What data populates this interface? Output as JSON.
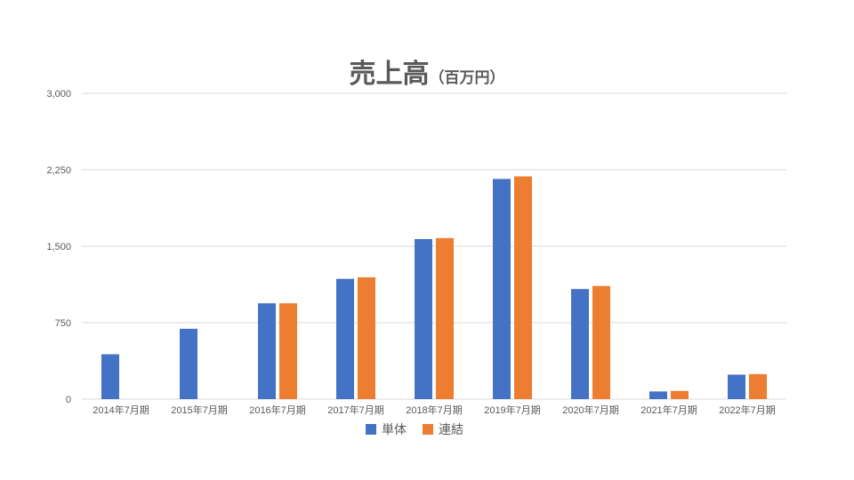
{
  "title": "売上高",
  "title_unit": "（百万円）",
  "colors": {
    "series1": "#4472C4",
    "series2": "#ED7D31",
    "grid": "#D9D9D9",
    "text": "#595959"
  },
  "chart_data": {
    "type": "bar",
    "title": "売上高（百万円）",
    "categories": [
      "2014年7月期",
      "2015年7月期",
      "2016年7月期",
      "2017年7月期",
      "2018年7月期",
      "2019年7月期",
      "2020年7月期",
      "2021年7月期",
      "2022年7月期"
    ],
    "series": [
      {
        "name": "単体",
        "color": "#4472C4",
        "values": [
          440,
          690,
          940,
          1180,
          1570,
          2160,
          1080,
          75,
          240
        ]
      },
      {
        "name": "連結",
        "color": "#ED7D31",
        "values": [
          null,
          null,
          940,
          1195,
          1580,
          2185,
          1110,
          80,
          245
        ]
      }
    ],
    "ylim": [
      0,
      3000
    ],
    "yticks": [
      0,
      750,
      1500,
      2250,
      3000
    ],
    "ytick_labels": [
      "0",
      "750",
      "1,500",
      "2,250",
      "3,000"
    ],
    "grid": true,
    "legend": "bottom"
  }
}
